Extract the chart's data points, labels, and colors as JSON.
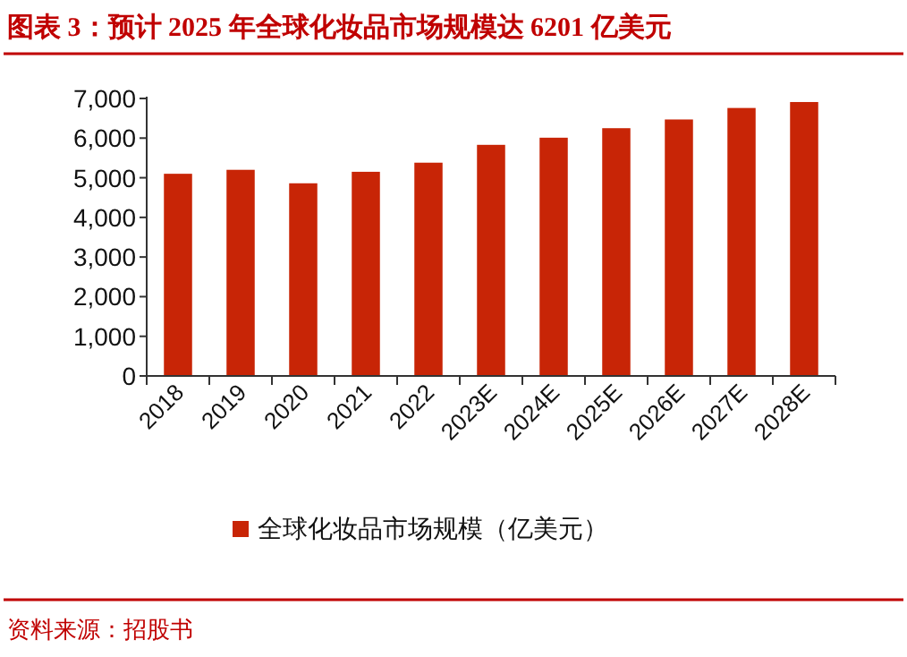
{
  "chart_data": {
    "type": "bar",
    "title": "图表 3：预计 2025 年全球化妆品市场规模达 6201 亿美元",
    "categories": [
      "2018",
      "2019",
      "2020",
      "2021",
      "2022",
      "2023E",
      "2024E",
      "2025E",
      "2026E",
      "2027E",
      "2028E"
    ],
    "series": [
      {
        "name": "全球化妆品市场规模（亿美元）",
        "color": "#c82506",
        "values": [
          5100,
          5200,
          4860,
          5150,
          5380,
          5830,
          6010,
          6250,
          6470,
          6760,
          6910
        ]
      }
    ],
    "ylim": [
      0,
      7000
    ],
    "yticks": [
      0,
      {
        "value": 1000,
        "label": "1,000"
      },
      {
        "value": 2000,
        "label": "2,000"
      },
      {
        "value": 3000,
        "label": "3,000"
      },
      {
        "value": 4000,
        "label": "4,000"
      },
      {
        "value": 5000,
        "label": "5,000"
      },
      {
        "value": 6000,
        "label": "6,000"
      },
      {
        "value": 7000,
        "label": "7,000"
      }
    ],
    "legend": "bottom",
    "annotations": [
      "资料来源：招股书"
    ]
  }
}
